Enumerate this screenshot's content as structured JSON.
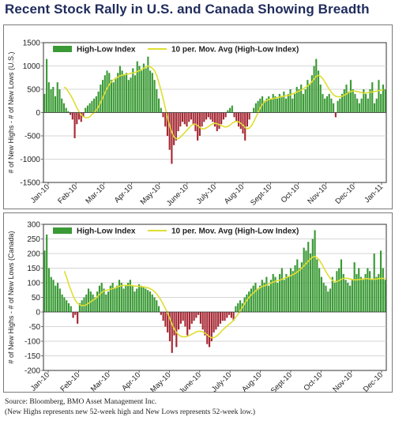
{
  "page": {
    "title": "Recent Stock Rally in U.S. and Canada Showing Breadth",
    "source": "Source: Bloomberg, BMO Asset Management Inc.",
    "note": "(New Highs represents new 52-week high and New Lows represents 52-week low.)"
  },
  "colors": {
    "bar": "#3a9a35",
    "bar_negative": "#a62834",
    "moving_average": "#dede32",
    "title": "#1f2c5c"
  },
  "chart_data": [
    {
      "type": "bar",
      "ylabel": "# of New Highs - # of New Lows (U.S.)",
      "ylim": [
        -1500,
        1500
      ],
      "yticks": [
        1500,
        1000,
        500,
        0,
        -500,
        -1000,
        -1500
      ],
      "xticks": [
        "Jan-10",
        "Feb-10",
        "Mar-10",
        "Apr-10",
        "May-10",
        "June-10",
        "July-10",
        "Aug-10",
        "Sept-10",
        "Oct-10",
        "Nov-10",
        "Dec-10",
        "Jan-11"
      ],
      "grid": true,
      "legend_position": "top",
      "series": [
        {
          "name": "High-Low Index",
          "values": [
            400,
            1150,
            650,
            500,
            550,
            350,
            650,
            500,
            300,
            200,
            100,
            30,
            -50,
            -150,
            -550,
            -250,
            -150,
            -200,
            -100,
            100,
            150,
            200,
            250,
            300,
            350,
            450,
            600,
            700,
            800,
            900,
            850,
            700,
            650,
            750,
            850,
            1000,
            900,
            800,
            850,
            700,
            750,
            950,
            800,
            1100,
            1000,
            900,
            1050,
            950,
            1200,
            900,
            850,
            700,
            500,
            300,
            100,
            -100,
            -300,
            -500,
            -800,
            -1100,
            -700,
            -600,
            -400,
            -300,
            -200,
            -250,
            -300,
            -200,
            -150,
            -250,
            -400,
            -600,
            -500,
            -300,
            -200,
            -150,
            -100,
            -150,
            -200,
            -300,
            -400,
            -350,
            -250,
            -150,
            -100,
            50,
            100,
            150,
            -100,
            -200,
            -300,
            -350,
            -450,
            -600,
            -300,
            -150,
            0,
            100,
            200,
            250,
            300,
            350,
            250,
            300,
            350,
            300,
            400,
            350,
            300,
            400,
            350,
            450,
            300,
            400,
            500,
            300,
            400,
            550,
            500,
            600,
            400,
            500,
            700,
            600,
            800,
            1000,
            1150,
            900,
            600,
            400,
            300,
            350,
            400,
            300,
            200,
            -100,
            250,
            300,
            400,
            500,
            600,
            450,
            700,
            500,
            400,
            300,
            200,
            300,
            500,
            400,
            300,
            500,
            650,
            200,
            300,
            700,
            400,
            600,
            500
          ]
        },
        {
          "name": "10 per. Mov. Avg (High-Low Index)",
          "values": [
            null,
            null,
            null,
            null,
            null,
            null,
            null,
            null,
            null,
            550,
            520,
            450,
            380,
            300,
            200,
            100,
            20,
            -50,
            -90,
            -110,
            -110,
            -90,
            -40,
            0,
            50,
            120,
            220,
            320,
            420,
            520,
            600,
            660,
            700,
            730,
            760,
            790,
            800,
            810,
            820,
            830,
            840,
            850,
            860,
            880,
            900,
            920,
            950,
            980,
            1000,
            980,
            950,
            900,
            800,
            650,
            480,
            300,
            100,
            -100,
            -280,
            -420,
            -520,
            -560,
            -560,
            -530,
            -480,
            -430,
            -380,
            -330,
            -280,
            -250,
            -250,
            -280,
            -320,
            -350,
            -350,
            -330,
            -300,
            -270,
            -240,
            -230,
            -240,
            -260,
            -280,
            -300,
            -310,
            -300,
            -270,
            -230,
            -200,
            -190,
            -200,
            -230,
            -270,
            -320,
            -350,
            -330,
            -280,
            -200,
            -100,
            0,
            100,
            170,
            230,
            260,
            280,
            290,
            300,
            310,
            320,
            330,
            340,
            350,
            360,
            370,
            380,
            400,
            420,
            440,
            460,
            480,
            510,
            540,
            570,
            610,
            660,
            720,
            780,
            800,
            780,
            730,
            660,
            580,
            500,
            440,
            380,
            350,
            340,
            340,
            350,
            370,
            400,
            430,
            450,
            460,
            460,
            450,
            440,
            430,
            420,
            420,
            430,
            440,
            440,
            450,
            460,
            470,
            480,
            490
          ]
        }
      ]
    },
    {
      "type": "bar",
      "ylabel": "# of New Highs - # of New Lows (Canada)",
      "ylim": [
        -200,
        300
      ],
      "yticks": [
        300,
        250,
        200,
        150,
        100,
        50,
        0,
        -50,
        -100,
        -150,
        -200
      ],
      "xticks": [
        "Jan-10",
        "Feb-10",
        "Mar-10",
        "Apr-10",
        "May-10",
        "June-10",
        "July-10",
        "Aug-10",
        "Sept-10",
        "Oct-10",
        "Nov-10",
        "Dec-10"
      ],
      "grid": true,
      "legend_position": "top",
      "series": [
        {
          "name": "High-Low Index",
          "values": [
            210,
            265,
            150,
            120,
            110,
            90,
            100,
            80,
            60,
            50,
            40,
            30,
            20,
            -20,
            -10,
            -40,
            30,
            40,
            50,
            60,
            80,
            70,
            60,
            50,
            70,
            90,
            100,
            80,
            60,
            70,
            90,
            100,
            80,
            90,
            110,
            100,
            80,
            90,
            100,
            110,
            90,
            70,
            80,
            95,
            90,
            85,
            80,
            75,
            70,
            60,
            50,
            40,
            20,
            -10,
            -30,
            -50,
            -70,
            -100,
            -140,
            -80,
            -120,
            -60,
            -40,
            -30,
            -50,
            -80,
            -60,
            -40,
            -30,
            -20,
            -10,
            -40,
            -60,
            -80,
            -110,
            -120,
            -100,
            -70,
            -60,
            -50,
            -40,
            -30,
            -30,
            -20,
            -10,
            -20,
            -30,
            20,
            30,
            40,
            30,
            50,
            60,
            70,
            80,
            90,
            100,
            80,
            90,
            110,
            100,
            120,
            90,
            110,
            130,
            120,
            100,
            130,
            150,
            110,
            130,
            120,
            150,
            140,
            160,
            180,
            150,
            170,
            220,
            210,
            240,
            200,
            250,
            280,
            180,
            150,
            120,
            100,
            90,
            70,
            80,
            120,
            100,
            140,
            150,
            180,
            130,
            110,
            100,
            90,
            110,
            170,
            130,
            150,
            120,
            110,
            130,
            150,
            140,
            110,
            200,
            120,
            130,
            210,
            150,
            110
          ]
        },
        {
          "name": "10 per. Mov. Avg (High-Low Index)",
          "values": [
            null,
            null,
            null,
            null,
            null,
            null,
            null,
            null,
            null,
            140,
            120,
            95,
            75,
            55,
            40,
            30,
            25,
            22,
            22,
            25,
            30,
            35,
            40,
            45,
            52,
            60,
            67,
            72,
            74,
            76,
            78,
            80,
            82,
            85,
            88,
            90,
            91,
            91,
            91,
            91,
            90,
            89,
            88,
            88,
            87,
            86,
            85,
            83,
            80,
            76,
            70,
            62,
            52,
            40,
            26,
            12,
            -4,
            -22,
            -42,
            -58,
            -70,
            -78,
            -83,
            -85,
            -85,
            -83,
            -80,
            -76,
            -72,
            -68,
            -66,
            -66,
            -68,
            -72,
            -78,
            -84,
            -88,
            -88,
            -84,
            -78,
            -70,
            -62,
            -55,
            -48,
            -42,
            -36,
            -28,
            -18,
            -8,
            4,
            16,
            28,
            40,
            50,
            58,
            65,
            72,
            78,
            83,
            87,
            90,
            93,
            96,
            99,
            102,
            105,
            107,
            109,
            112,
            115,
            118,
            121,
            124,
            128,
            132,
            137,
            143,
            150,
            158,
            166,
            174,
            182,
            188,
            190,
            186,
            178,
            166,
            152,
            138,
            126,
            116,
            108,
            104,
            104,
            108,
            112,
            115,
            116,
            115,
            113,
            111,
            110,
            110,
            111,
            112,
            113,
            114,
            114,
            113,
            112,
            112,
            113,
            114,
            115,
            115,
            114
          ]
        }
      ]
    }
  ]
}
